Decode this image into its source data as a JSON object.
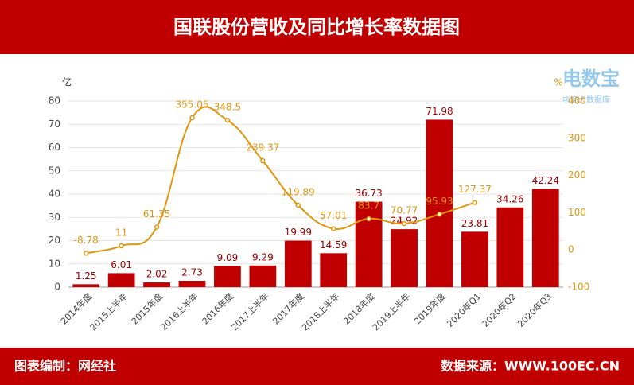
{
  "chart_data": {
    "type": "bar",
    "title": "国联股份营收及同比增长率数据图",
    "footer_left": "图表编制：网经社",
    "footer_right": "数据来源：WWW.100EC.CN",
    "logo": "电数宝",
    "logo_subtitle": "电商大数据库",
    "y_label": "亿",
    "y2_label": "%",
    "categories": [
      "2014年度",
      "2015上半年",
      "2015年度",
      "2016上半年",
      "2016年度",
      "2017上半年",
      "2017年度",
      "2018上半年",
      "2018年度",
      "2019上半年",
      "2019年度",
      "2020年Q1",
      "2020年Q2",
      "2020年Q3"
    ],
    "series": [
      {
        "type": "bar",
        "color": "#c00000",
        "values": [
          1.25,
          6.01,
          2.02,
          2.73,
          9.09,
          9.29,
          19.99,
          14.59,
          36.73,
          24.92,
          71.98,
          23.81,
          34.26,
          42.24
        ]
      },
      {
        "type": "line",
        "axis": "y2",
        "color": "#e0960f",
        "values": [
          -8.78,
          11,
          61.35,
          355.05,
          348.5,
          239.37,
          119.89,
          57.01,
          83.7,
          70.77,
          95.93,
          127.37,
          null,
          null
        ]
      }
    ],
    "ylim": [
      0,
      80
    ],
    "yticks": [
      0,
      10,
      20,
      30,
      40,
      50,
      60,
      70,
      80
    ],
    "y2lim": [
      -100,
      400
    ],
    "y2ticks": [
      -100,
      0,
      100,
      200,
      300,
      400
    ],
    "grid": true
  }
}
